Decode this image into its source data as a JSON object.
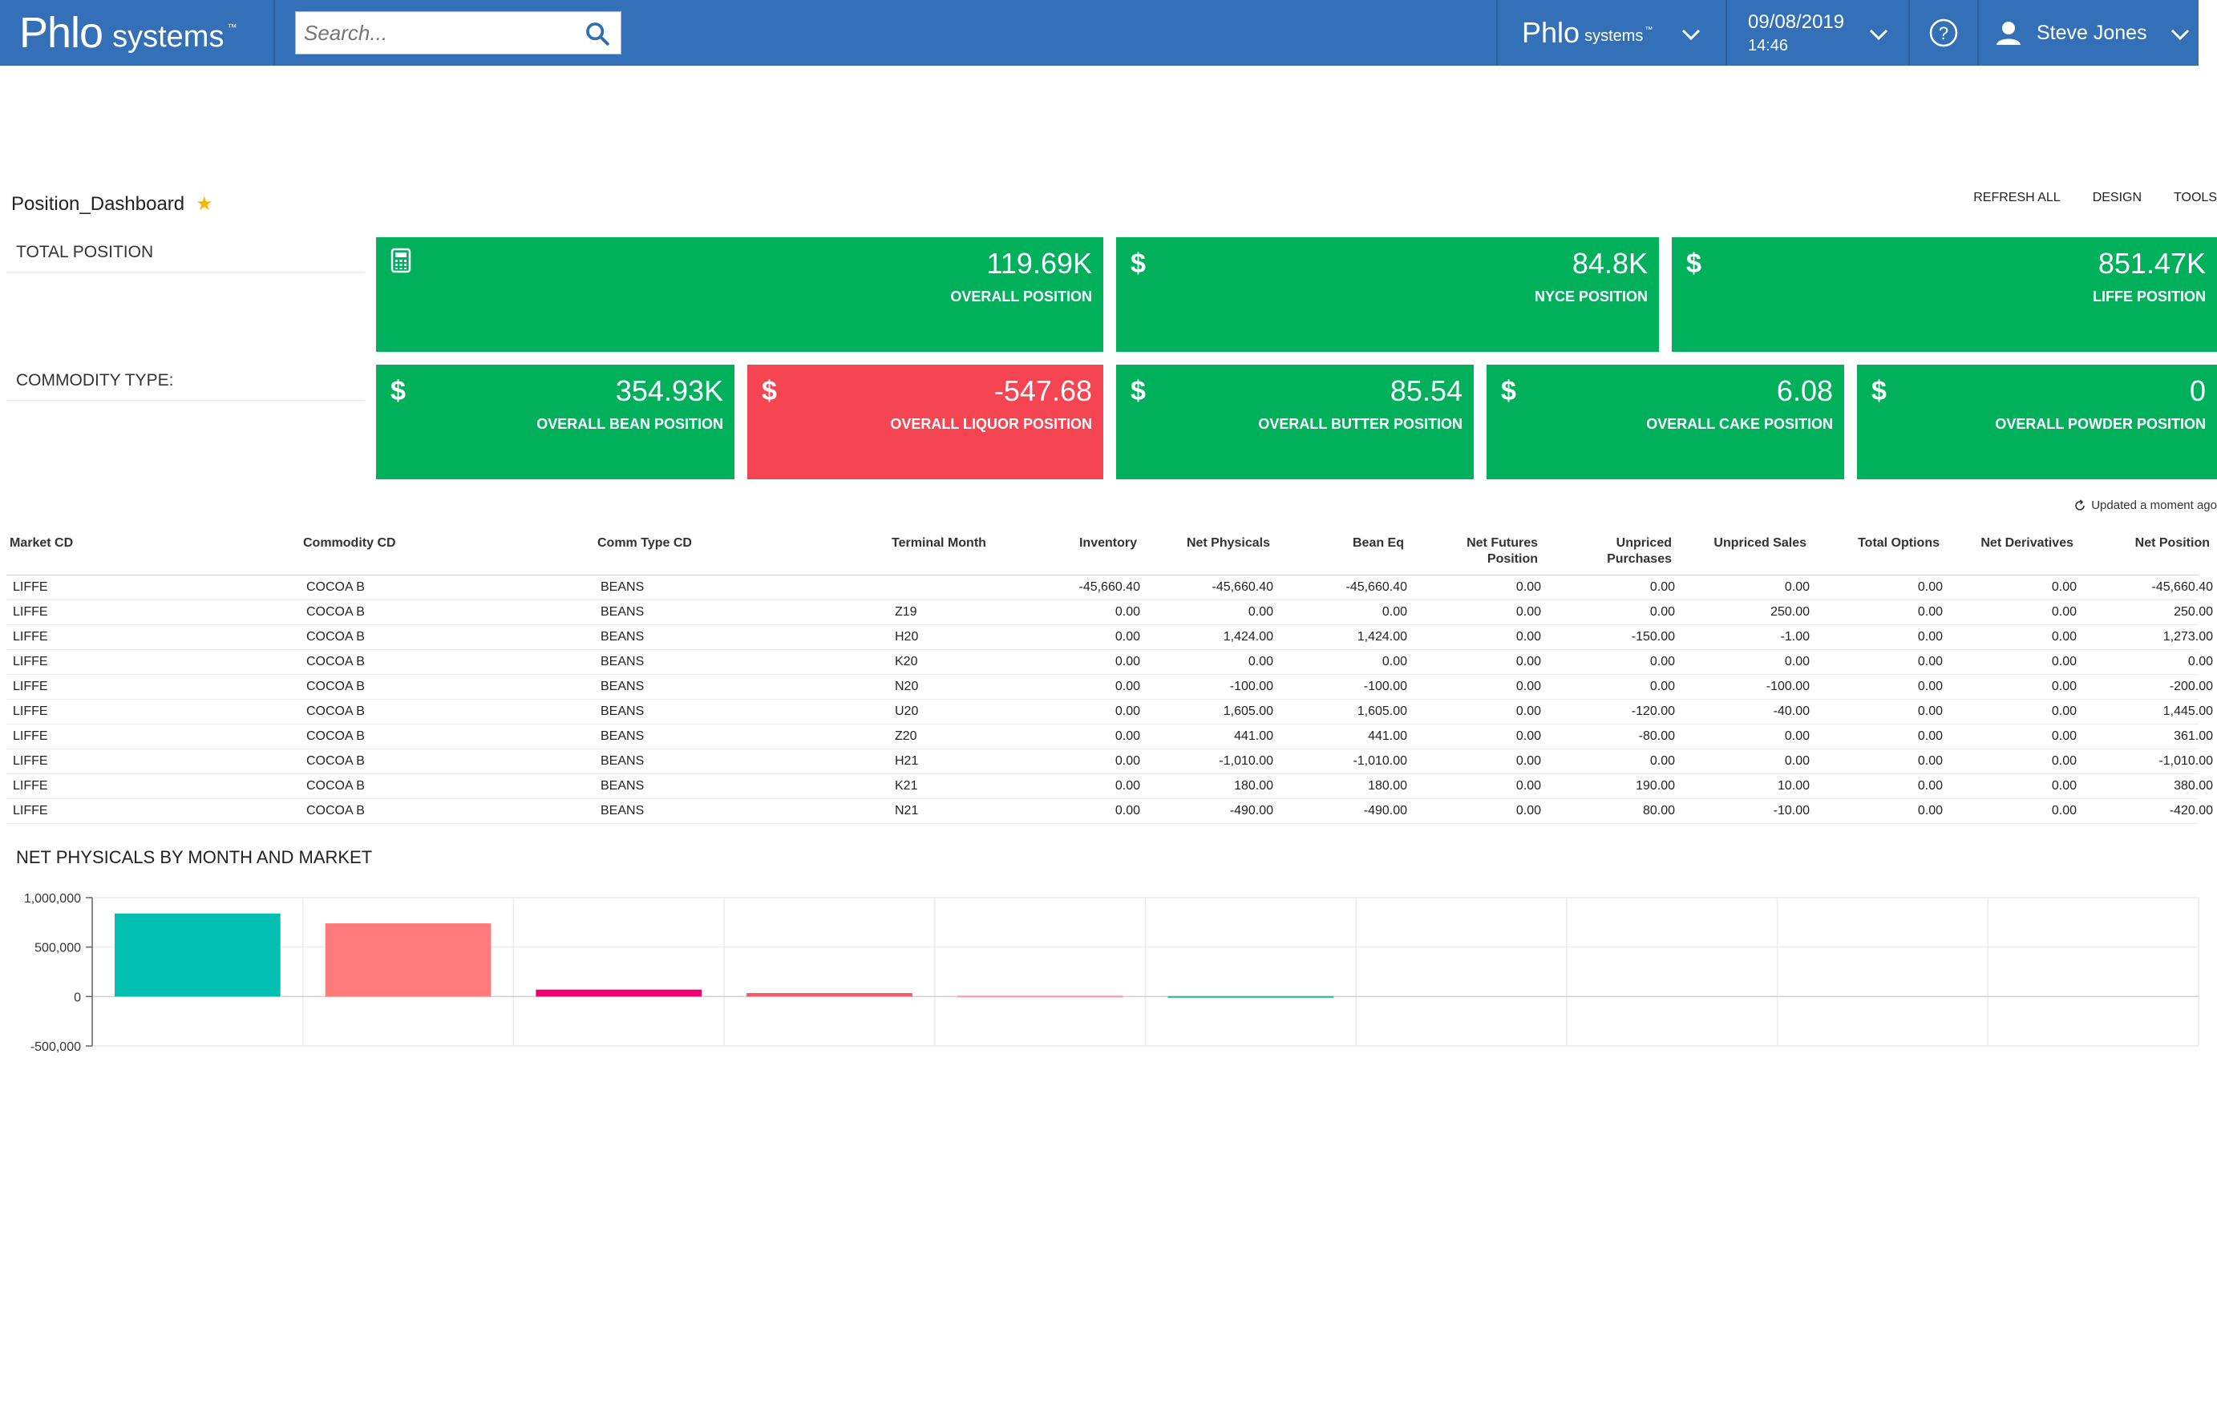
{
  "topbar": {
    "logo_main": "Phlo",
    "logo_sub": "systems",
    "logo_tm": "™",
    "search_placeholder": "Search...",
    "company_main": "Phlo",
    "company_sub": "systems",
    "company_tm": "™",
    "date": "09/08/2019",
    "time": "14:46",
    "user_name": "Steve Jones"
  },
  "page": {
    "title": "Position_Dashboard",
    "star": "★",
    "actions": [
      "REFRESH ALL",
      "DESIGN",
      "TOOLS"
    ],
    "total_label": "TOTAL POSITION",
    "commodity_label": "COMMODITY TYPE:"
  },
  "tiles_total": [
    {
      "icon": "calculator-icon",
      "value": "119.69K",
      "label": "OVERALL POSITION",
      "color": "#00b05b"
    },
    {
      "icon": "dollar-icon",
      "value": "84.8K",
      "label": "NYCE POSITION",
      "color": "#00b05b"
    },
    {
      "icon": "dollar-icon",
      "value": "851.47K",
      "label": "LIFFE POSITION",
      "color": "#00b05b"
    }
  ],
  "tiles_commodity": [
    {
      "icon": "dollar-icon",
      "value": "354.93K",
      "label": "OVERALL BEAN POSITION",
      "color": "#00b05b"
    },
    {
      "icon": "dollar-icon",
      "value": "-547.68",
      "label": "OVERALL LIQUOR POSITION",
      "color": "#f54452"
    },
    {
      "icon": "dollar-icon",
      "value": "85.54",
      "label": "OVERALL BUTTER POSITION",
      "color": "#00b05b"
    },
    {
      "icon": "dollar-icon",
      "value": "6.08",
      "label": "OVERALL CAKE POSITION",
      "color": "#00b05b"
    },
    {
      "icon": "dollar-icon",
      "value": "0",
      "label": "OVERALL POWDER POSITION",
      "color": "#00b05b"
    }
  ],
  "dollar_symbol": "$",
  "table": {
    "updated": "Updated a moment ago",
    "columns": [
      "Market CD",
      "Commodity CD",
      "Comm Type CD",
      "Terminal Month",
      "Inventory",
      "Net Physicals",
      "Bean Eq",
      "Net Futures Position",
      "Unpriced Purchases",
      "Unpriced Sales",
      "Total Options",
      "Net Derivatives",
      "Net Position"
    ],
    "rows": [
      [
        "LIFFE",
        "COCOA B",
        "BEANS",
        "",
        "-45,660.40",
        "-45,660.40",
        "-45,660.40",
        "0.00",
        "0.00",
        "0.00",
        "0.00",
        "0.00",
        "-45,660.40"
      ],
      [
        "LIFFE",
        "COCOA B",
        "BEANS",
        "Z19",
        "0.00",
        "0.00",
        "0.00",
        "0.00",
        "0.00",
        "250.00",
        "0.00",
        "0.00",
        "250.00"
      ],
      [
        "LIFFE",
        "COCOA B",
        "BEANS",
        "H20",
        "0.00",
        "1,424.00",
        "1,424.00",
        "0.00",
        "-150.00",
        "-1.00",
        "0.00",
        "0.00",
        "1,273.00"
      ],
      [
        "LIFFE",
        "COCOA B",
        "BEANS",
        "K20",
        "0.00",
        "0.00",
        "0.00",
        "0.00",
        "0.00",
        "0.00",
        "0.00",
        "0.00",
        "0.00"
      ],
      [
        "LIFFE",
        "COCOA B",
        "BEANS",
        "N20",
        "0.00",
        "-100.00",
        "-100.00",
        "0.00",
        "0.00",
        "-100.00",
        "0.00",
        "0.00",
        "-200.00"
      ],
      [
        "LIFFE",
        "COCOA B",
        "BEANS",
        "U20",
        "0.00",
        "1,605.00",
        "1,605.00",
        "0.00",
        "-120.00",
        "-40.00",
        "0.00",
        "0.00",
        "1,445.00"
      ],
      [
        "LIFFE",
        "COCOA B",
        "BEANS",
        "Z20",
        "0.00",
        "441.00",
        "441.00",
        "0.00",
        "-80.00",
        "0.00",
        "0.00",
        "0.00",
        "361.00"
      ],
      [
        "LIFFE",
        "COCOA B",
        "BEANS",
        "H21",
        "0.00",
        "-1,010.00",
        "-1,010.00",
        "0.00",
        "0.00",
        "0.00",
        "0.00",
        "0.00",
        "-1,010.00"
      ],
      [
        "LIFFE",
        "COCOA B",
        "BEANS",
        "K21",
        "0.00",
        "180.00",
        "180.00",
        "0.00",
        "190.00",
        "10.00",
        "0.00",
        "0.00",
        "380.00"
      ],
      [
        "LIFFE",
        "COCOA B",
        "BEANS",
        "N21",
        "0.00",
        "-490.00",
        "-490.00",
        "0.00",
        "80.00",
        "-10.00",
        "0.00",
        "0.00",
        "-420.00"
      ]
    ]
  },
  "chart_title": "NET PHYSICALS BY MONTH AND MARKET",
  "chart_data": {
    "type": "bar",
    "title": "NET PHYSICALS BY MONTH AND MARKET",
    "ylim": [
      -500000,
      1000000
    ],
    "yticks": [
      1000000,
      500000,
      0,
      -500000
    ],
    "ytick_labels": [
      "1,000,000",
      "500,000",
      "0",
      "-500,000"
    ],
    "grid": true,
    "bars": [
      {
        "slot": 0,
        "value": 840000,
        "color": "#00bfb0"
      },
      {
        "slot": 1,
        "value": 740000,
        "color": "#ff7a7a"
      },
      {
        "slot": 2,
        "value": 70000,
        "color": "#f0006e"
      },
      {
        "slot": 3,
        "value": 35000,
        "color": "#f25c6a"
      },
      {
        "slot": 4,
        "value": 8000,
        "color": "#ff8fa0"
      },
      {
        "slot": 5,
        "value": 4000,
        "color": "#22b8a8"
      }
    ],
    "slot_count": 10
  }
}
